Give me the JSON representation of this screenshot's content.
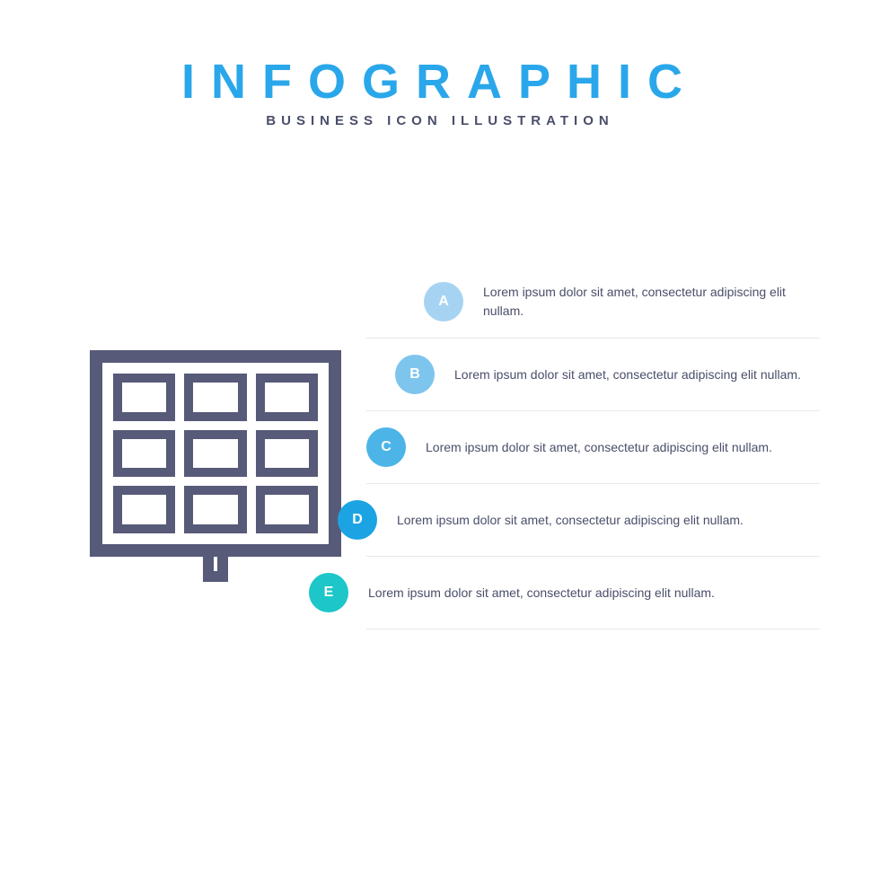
{
  "header": {
    "title": "INFOGRAPHIC",
    "title_color": "#2aa7ea",
    "subtitle": "BUSINESS ICON ILLUSTRATION",
    "subtitle_color": "#4a4e6a"
  },
  "icon": {
    "stroke_color": "#575a78"
  },
  "steps": [
    {
      "letter": "A",
      "color": "#a7d3f2",
      "text": "Lorem ipsum dolor sit amet, consectetur adipiscing elit nullam."
    },
    {
      "letter": "B",
      "color": "#7ec5ed",
      "text": "Lorem ipsum dolor sit amet, consectetur adipiscing elit nullam."
    },
    {
      "letter": "C",
      "color": "#4db4e8",
      "text": "Lorem ipsum dolor sit amet, consectetur adipiscing elit nullam."
    },
    {
      "letter": "D",
      "color": "#1ca3e3",
      "text": "Lorem ipsum dolor sit amet, consectetur adipiscing elit nullam."
    },
    {
      "letter": "E",
      "color": "#1dc6c9",
      "text": "Lorem ipsum dolor sit amet, consectetur adipiscing elit nullam."
    }
  ],
  "text_color": "#4a4e6a",
  "divider_color": "#e8e8e8"
}
